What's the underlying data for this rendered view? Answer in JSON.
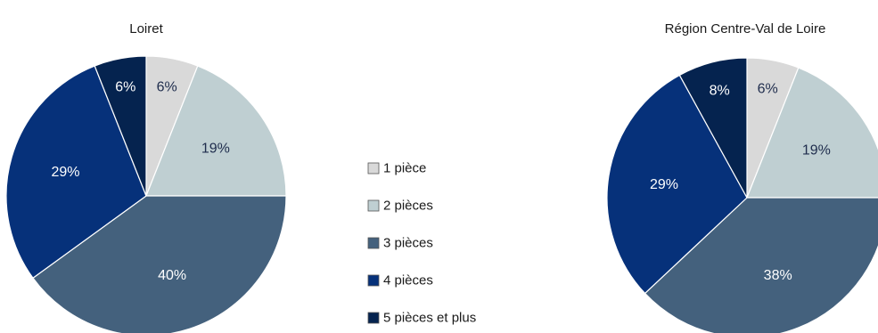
{
  "chart_data": [
    {
      "type": "pie",
      "title": "Loiret",
      "categories": [
        "1 pièce",
        "2 pièces",
        "3 pièces",
        "4 pièces",
        "5 pièces et plus"
      ],
      "values": [
        6,
        19,
        40,
        29,
        6
      ],
      "labels": [
        "6%",
        "19%",
        "40%",
        "29%",
        "6%"
      ],
      "unit": "%"
    },
    {
      "type": "pie",
      "title": "Région Centre-Val de Loire",
      "categories": [
        "1 pièce",
        "2 pièces",
        "3 pièces",
        "4 pièces",
        "5 pièces et plus"
      ],
      "values": [
        6,
        19,
        38,
        29,
        8
      ],
      "labels": [
        "6%",
        "19%",
        "38%",
        "29%",
        "8%"
      ],
      "unit": "%"
    }
  ],
  "legend": {
    "placement": "center",
    "items": [
      {
        "label": "1 pièce",
        "color": "#d9d9d9"
      },
      {
        "label": "2 pièces",
        "color": "#bfcfd2"
      },
      {
        "label": "3 pièces",
        "color": "#44617d"
      },
      {
        "label": "4 pièces",
        "color": "#06317a"
      },
      {
        "label": "5 pièces et plus",
        "color": "#05234f"
      }
    ]
  },
  "colors": {
    "slices": [
      "#d9d9d9",
      "#bfcfd2",
      "#44617d",
      "#06317a",
      "#05234f"
    ],
    "label_dark": "#1f2d4d",
    "label_light": "#ffffff",
    "slice_border": "#ffffff"
  }
}
